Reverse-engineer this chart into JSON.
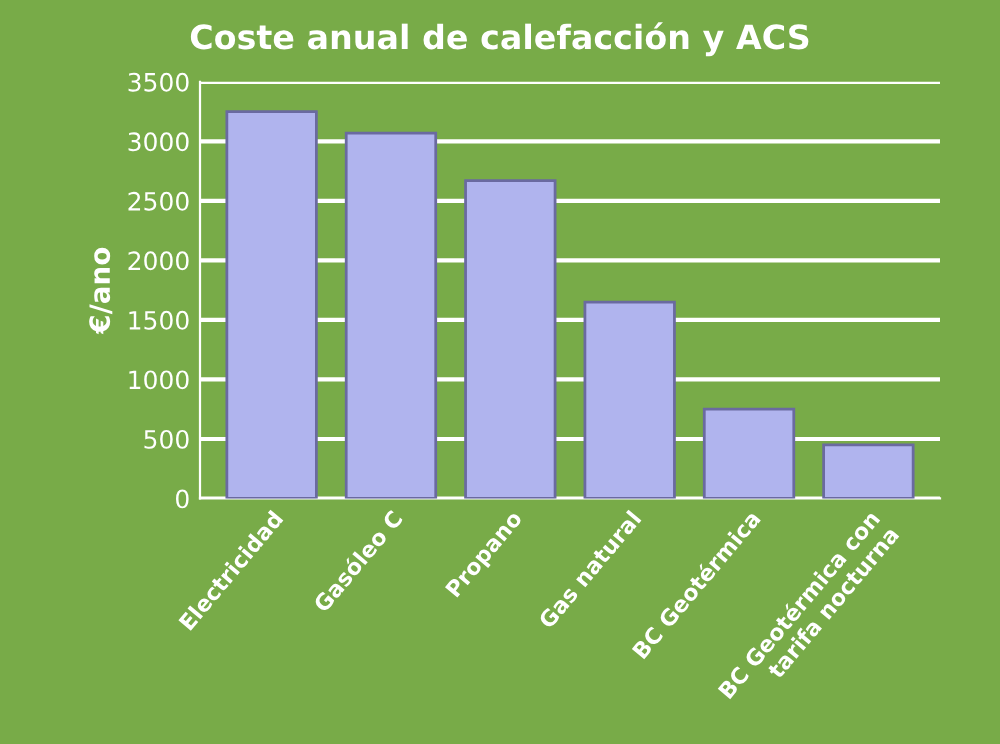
{
  "chart_data": {
    "type": "bar",
    "title": "Coste anual de calefacción y ACS",
    "ylabel": "€/ano",
    "categories": [
      "Electricidad",
      "Gasóleo C",
      "Propano",
      "Gas natural",
      "BC Geotérmica",
      "BC Geotérmica con tarifa nocturna"
    ],
    "values": [
      3250,
      3070,
      2670,
      1650,
      750,
      450
    ],
    "color": "#b0b4ee",
    "ylim": [
      0,
      3500
    ],
    "yticks": [
      0,
      500,
      1000,
      1500,
      2000,
      2500,
      3000,
      3500
    ],
    "grid": "y"
  }
}
